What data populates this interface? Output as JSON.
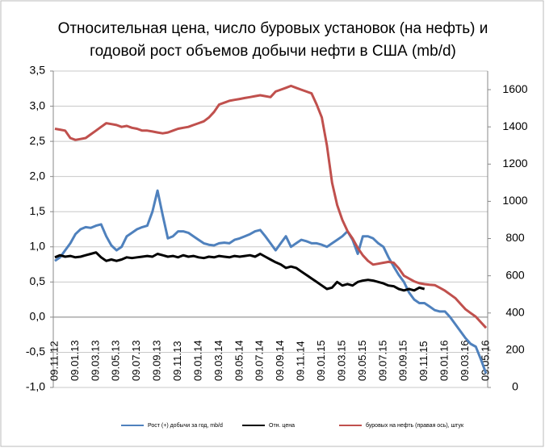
{
  "chart_data": {
    "type": "line",
    "title": [
      "Относительная цена, число буровых установок (на нефть) и",
      "годовой рост объемов добычи нефти в США (mb/d)"
    ],
    "categories": [
      "09.11.12",
      null,
      null,
      null,
      "09.01.13",
      null,
      null,
      null,
      "09.03.13",
      null,
      null,
      null,
      "09.05.13",
      null,
      null,
      null,
      "09.07.13",
      null,
      null,
      null,
      "09.09.13",
      null,
      null,
      null,
      "09.11.13",
      null,
      null,
      null,
      "09.01.14",
      null,
      null,
      null,
      "09.03.14",
      null,
      null,
      null,
      "09.05.14",
      null,
      null,
      null,
      "09.07.14",
      null,
      null,
      null,
      "09.09.14",
      null,
      null,
      null,
      "09.11.14",
      null,
      null,
      null,
      "09.01.15",
      null,
      null,
      null,
      "09.03.15",
      null,
      null,
      null,
      "09.05.15",
      null,
      null,
      null,
      "09.07.15",
      null,
      null,
      null,
      "09.09.15",
      null,
      null,
      null,
      "09.11.15",
      null,
      null,
      null,
      "09.01.16",
      null,
      null,
      null,
      "09.03.16",
      null,
      null,
      null,
      "09.05.16"
    ],
    "series": [
      {
        "name": "Рост (+) добычи за год, mb/d",
        "color": "#4f81bd",
        "values": [
          0.8,
          0.85,
          0.95,
          1.05,
          1.18,
          1.25,
          1.28,
          1.27,
          1.3,
          1.32,
          1.15,
          1.02,
          0.95,
          1.0,
          1.15,
          1.2,
          1.25,
          1.28,
          1.3,
          1.5,
          1.8,
          1.45,
          1.12,
          1.15,
          1.22,
          1.22,
          1.2,
          1.15,
          1.1,
          1.05,
          1.03,
          1.02,
          1.05,
          1.06,
          1.05,
          1.1,
          1.12,
          1.15,
          1.18,
          1.22,
          1.24,
          1.15,
          1.05,
          0.95,
          1.05,
          1.15,
          1.0,
          1.05,
          1.1,
          1.08,
          1.05,
          1.05,
          1.03,
          1.0,
          1.05,
          1.1,
          1.15,
          1.22,
          1.1,
          0.9,
          1.15,
          1.15,
          1.12,
          1.05,
          1.0,
          0.85,
          0.72,
          0.6,
          0.5,
          0.35,
          0.25,
          0.2,
          0.2,
          0.15,
          0.1,
          0.08,
          0.08,
          0.0,
          -0.1,
          -0.2,
          -0.3,
          -0.38,
          -0.42,
          -0.6,
          -0.8
        ]
      },
      {
        "name": "Отн. цена",
        "color": "#000000",
        "values": [
          0.85,
          0.88,
          0.86,
          0.87,
          0.85,
          0.86,
          0.88,
          0.9,
          0.92,
          0.85,
          0.8,
          0.82,
          0.8,
          0.82,
          0.85,
          0.84,
          0.85,
          0.86,
          0.87,
          0.86,
          0.9,
          0.88,
          0.86,
          0.87,
          0.85,
          0.88,
          0.86,
          0.87,
          0.85,
          0.84,
          0.86,
          0.85,
          0.87,
          0.86,
          0.85,
          0.87,
          0.86,
          0.87,
          0.88,
          0.86,
          0.9,
          0.86,
          0.82,
          0.78,
          0.75,
          0.7,
          0.72,
          0.7,
          0.65,
          0.6,
          0.55,
          0.5,
          0.45,
          0.4,
          0.42,
          0.5,
          0.45,
          0.47,
          0.45,
          0.5,
          0.52,
          0.53,
          0.52,
          0.5,
          0.48,
          0.45,
          0.44,
          0.4,
          0.38,
          0.4,
          0.38,
          0.42,
          0.4,
          null,
          null,
          null,
          null,
          null,
          null,
          null,
          null,
          null,
          null,
          null,
          null
        ]
      },
      {
        "name": "буровых на нефть (правая ось), штук",
        "color": "#c0504d",
        "axis": "y2",
        "values": [
          1390,
          1385,
          1380,
          1340,
          1330,
          1335,
          1340,
          1360,
          1380,
          1400,
          1420,
          1415,
          1410,
          1400,
          1405,
          1395,
          1390,
          1380,
          1380,
          1375,
          1370,
          1365,
          1370,
          1380,
          1390,
          1395,
          1400,
          1410,
          1420,
          1430,
          1450,
          1480,
          1520,
          1530,
          1540,
          1545,
          1550,
          1555,
          1560,
          1565,
          1570,
          1565,
          1560,
          1590,
          1600,
          1610,
          1620,
          1610,
          1600,
          1590,
          1580,
          1520,
          1450,
          1300,
          1100,
          980,
          900,
          840,
          800,
          750,
          710,
          680,
          660,
          665,
          670,
          675,
          670,
          640,
          600,
          585,
          570,
          560,
          555,
          552,
          550,
          535,
          520,
          500,
          480,
          450,
          420,
          400,
          380,
          350,
          320
        ]
      }
    ],
    "ylim": [
      -1,
      3.5
    ],
    "yticks": [
      {
        "value": -1,
        "label": "-1,0"
      },
      {
        "value": -0.5,
        "label": "-0,5"
      },
      {
        "value": 0,
        "label": "0,0"
      },
      {
        "value": 0.5,
        "label": "0,5"
      },
      {
        "value": 1,
        "label": "1,0"
      },
      {
        "value": 1.5,
        "label": "1,5"
      },
      {
        "value": 2,
        "label": "2,0"
      },
      {
        "value": 2.5,
        "label": "2,5"
      },
      {
        "value": 3,
        "label": "3,0"
      },
      {
        "value": 3.5,
        "label": "3,5"
      }
    ],
    "y2lim": [
      0,
      1700
    ],
    "y2ticks": [
      0,
      200,
      400,
      600,
      800,
      1000,
      1200,
      1400,
      1600
    ],
    "grid": true
  }
}
